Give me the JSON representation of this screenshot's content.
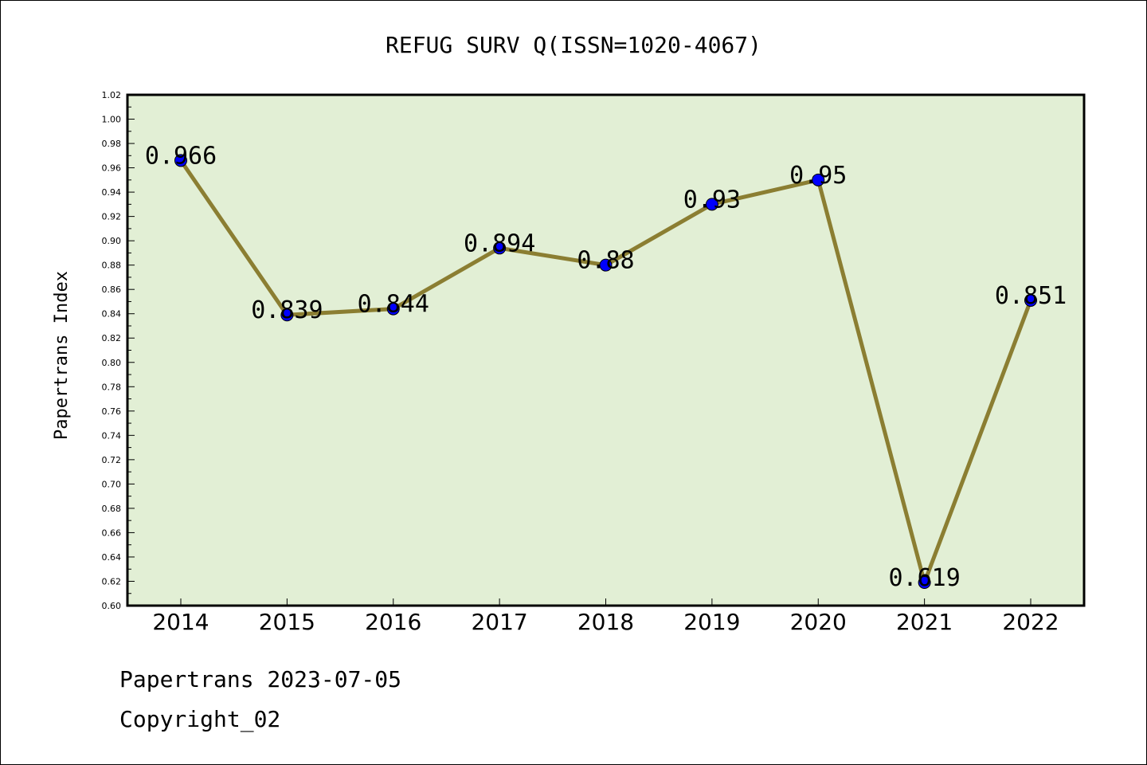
{
  "chart_data": {
    "type": "line",
    "title": "REFUG SURV Q(ISSN=1020-4067)",
    "xlabel": "",
    "ylabel": "Papertrans Index",
    "categories": [
      "2014",
      "2015",
      "2016",
      "2017",
      "2018",
      "2019",
      "2020",
      "2021",
      "2022"
    ],
    "series": [
      {
        "values": [
          0.966,
          0.839,
          0.844,
          0.894,
          0.88,
          0.93,
          0.95,
          0.619,
          0.851
        ],
        "data_labels": [
          "0.966",
          "0.839",
          "0.844",
          "0.894",
          "0.88",
          "0.93",
          "0.95",
          "0.619",
          "0.851"
        ]
      }
    ],
    "ylim": [
      0.6,
      1.02
    ],
    "yticks": [
      "0.60",
      "0.62",
      "0.64",
      "0.66",
      "0.68",
      "0.70",
      "0.72",
      "0.74",
      "0.76",
      "0.78",
      "0.80",
      "0.82",
      "0.84",
      "0.86",
      "0.88",
      "0.90",
      "0.92",
      "0.94",
      "0.96",
      "0.98",
      "1.00",
      "1.02"
    ],
    "grid": false,
    "colors": {
      "plot_background": "#e2efd5",
      "line": "#8b7e32",
      "marker": "#0000ff"
    }
  },
  "footer": {
    "line1": "Papertrans 2023-07-05",
    "line2": "Copyright_02"
  }
}
